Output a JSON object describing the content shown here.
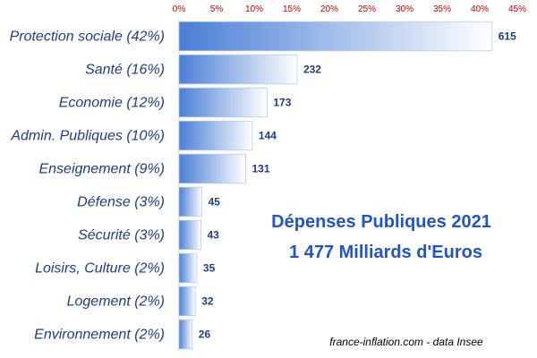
{
  "chart_data": {
    "type": "bar",
    "orientation": "horizontal",
    "categories": [
      "Protection sociale (42%)",
      "Santé (16%)",
      "Economie (12%)",
      "Admin. Publiques (10%)",
      "Enseignement (9%)",
      "Défense (3%)",
      "Sécurité (3%)",
      "Loisirs, Culture (2%)",
      "Logement (2%)",
      "Environnement (2%)"
    ],
    "values": [
      615,
      232,
      173,
      144,
      131,
      45,
      43,
      35,
      32,
      26
    ],
    "value_labels": [
      "615",
      "232",
      "173",
      "144",
      "131",
      "45",
      "43",
      "35",
      "32",
      "26"
    ],
    "total": 1477,
    "x_axis": {
      "position": "top",
      "range_percent": [
        0,
        45
      ],
      "ticks": [
        "0%",
        "5%",
        "10%",
        "15%",
        "20%",
        "25%",
        "30%",
        "35%",
        "40%",
        "45%"
      ],
      "grid": false
    },
    "title_lines": [
      "Dépenses Publiques 2021",
      "1 477 Milliards d'Euros"
    ],
    "source": "france-inflation.com -  data Insee",
    "colors": {
      "bar_start": "#4a7fd6",
      "bar_end": "#ffffff",
      "bar_border": "#b8cbe8",
      "category_text": "#1f3b8c",
      "tick_text": "#c00000",
      "value_text": "#1f3b8c",
      "title_text": "#2255c4"
    }
  }
}
